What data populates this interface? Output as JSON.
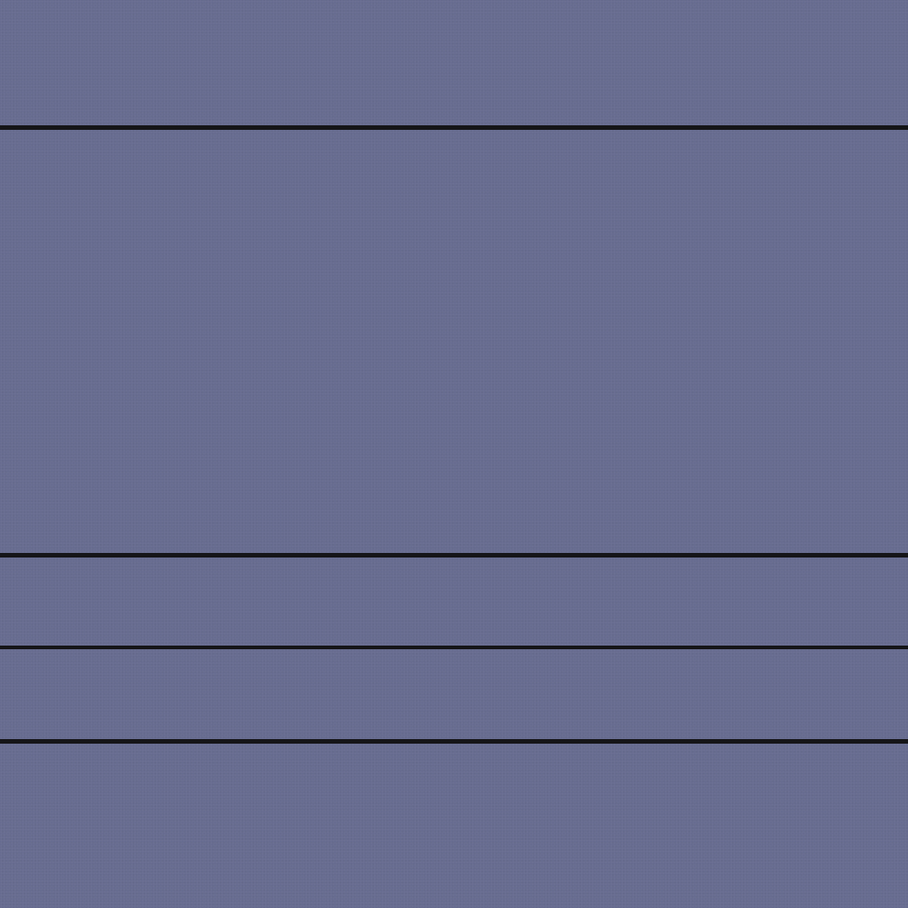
{
  "background": {
    "color": "#676c90",
    "texture": "fine-grain"
  },
  "dividers": {
    "color": "#151518",
    "count": 4
  }
}
